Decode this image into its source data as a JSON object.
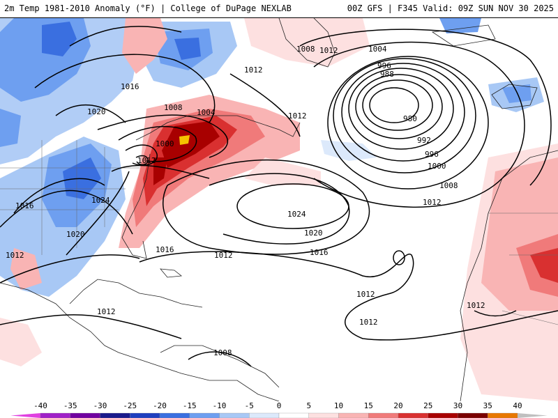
{
  "header": {
    "title_left": "2m Temp 1981-2010 Anomaly (°F) | College of DuPage NEXLAB",
    "title_right": "00Z GFS | F345 Valid: 09Z SUN NOV 30 2025"
  },
  "isobar_labels": [
    "1016",
    "1020",
    "1008",
    "1004",
    "1000",
    "1012",
    "1024",
    "1020",
    "1012",
    "1016",
    "1024",
    "1020",
    "1012",
    "1016",
    "1012",
    "1008",
    "1004",
    "996",
    "988",
    "980",
    "992",
    "996",
    "1000",
    "1008",
    "1012",
    "1016",
    "1012",
    "1012",
    "1012",
    "1012",
    "1012",
    "1008",
    "1012"
  ],
  "colorbar": {
    "ticks": [
      "-40",
      "-35",
      "-30",
      "-25",
      "-20",
      "-15",
      "-10",
      "-5",
      "0",
      "5",
      "10",
      "15",
      "20",
      "25",
      "30",
      "35",
      "40"
    ],
    "colors": [
      "#e040e0",
      "#a020c8",
      "#7000a0",
      "#1a1a8c",
      "#1f3fbf",
      "#3a6fe0",
      "#6e9ff0",
      "#a8c8f5",
      "#dce9fb",
      "#ffffff",
      "#fde0e0",
      "#f9b4b4",
      "#f07a7a",
      "#d93030",
      "#a80000",
      "#7a0000",
      "#e87800",
      "#f5c400"
    ]
  }
}
